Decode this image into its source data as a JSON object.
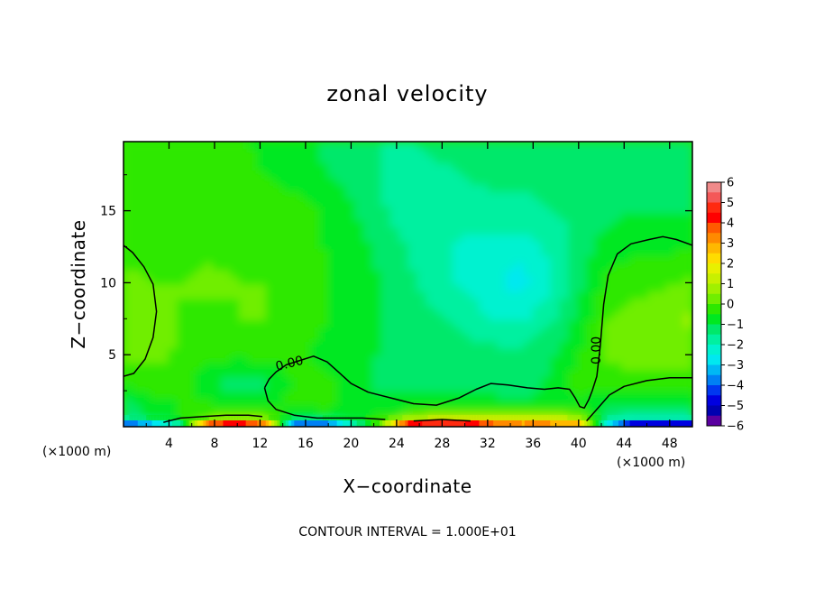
{
  "chart_data": {
    "type": "heatmap",
    "title": "zonal velocity",
    "xlabel": "X−coordinate",
    "ylabel": "Z−coordinate",
    "xlim": [
      0,
      50
    ],
    "ylim": [
      0,
      19.8
    ],
    "x_ticks": [
      {
        "value": 4,
        "label": "4"
      },
      {
        "value": 8,
        "label": "8"
      },
      {
        "value": 12,
        "label": "12"
      },
      {
        "value": 16,
        "label": "16"
      },
      {
        "value": 20,
        "label": "20"
      },
      {
        "value": 24,
        "label": "24"
      },
      {
        "value": 28,
        "label": "28"
      },
      {
        "value": 32,
        "label": "32"
      },
      {
        "value": 36,
        "label": "36"
      },
      {
        "value": 40,
        "label": "40"
      },
      {
        "value": 44,
        "label": "44"
      },
      {
        "value": 48,
        "label": "48"
      }
    ],
    "y_ticks": [
      {
        "value": 5,
        "label": "5"
      },
      {
        "value": 10,
        "label": "10"
      },
      {
        "value": 15,
        "label": "15"
      }
    ],
    "x_units": "(×1000 m)",
    "y_units": "(×1000 m)",
    "contour_label": "0.00",
    "contour_interval_text": "CONTOUR INTERVAL = 1.000E+01",
    "colorbar": {
      "labels": [
        "6",
        "5",
        "4",
        "3",
        "2",
        "1",
        "0",
        "−1",
        "−2",
        "−3",
        "−4",
        "−5",
        "−6"
      ],
      "levels": [
        6,
        5.5,
        5,
        4.5,
        4,
        3.5,
        3,
        2.5,
        2,
        1.5,
        1,
        0.5,
        0,
        -0.5,
        -1,
        -1.5,
        -2,
        -2.5,
        -3,
        -3.5,
        -4,
        -4.5,
        -5,
        -5.5
      ],
      "colors": [
        "#f08a8a",
        "#f45858",
        "#ff2a10",
        "#ff0000",
        "#ff5a00",
        "#ff8a00",
        "#ffb800",
        "#ffdc00",
        "#e8f000",
        "#c8f000",
        "#a0f000",
        "#70ee00",
        "#2ee800",
        "#00e820",
        "#00e86a",
        "#00f0a0",
        "#00f2d0",
        "#00e8f0",
        "#00b8f4",
        "#0080f4",
        "#0038f0",
        "#0000e0",
        "#0000b0",
        "#5a00a0"
      ]
    },
    "field_grid": {
      "x": [
        0,
        2.5,
        5,
        7.5,
        10,
        12.5,
        15,
        17.5,
        20,
        22.5,
        25,
        27.5,
        30,
        32.5,
        35,
        37.5,
        40,
        42.5,
        45,
        47.5,
        50
      ],
      "z": [
        0,
        0.5,
        1.5,
        3,
        5,
        7.5,
        10,
        12.5,
        15,
        17.5,
        19.8
      ],
      "values": [
        [
          -3.5,
          -2.5,
          -1.0,
          4.0,
          5.0,
          3.5,
          -3.0,
          -3.5,
          -1.5,
          0.5,
          4.5,
          5.5,
          5.0,
          4.0,
          3.5,
          3.5,
          3.0,
          -2.0,
          -4.5,
          -4.5,
          -4.0
        ],
        [
          -1.2,
          -0.3,
          0.0,
          0.5,
          1.0,
          0.6,
          -0.6,
          -0.5,
          -0.2,
          0.2,
          1.2,
          1.6,
          1.8,
          1.7,
          1.5,
          2.0,
          1.2,
          -1.0,
          -1.4,
          -1.3,
          -1.2
        ],
        [
          -0.8,
          -0.2,
          0.0,
          0.1,
          0.0,
          0.0,
          0.1,
          0.2,
          -0.2,
          -0.4,
          -0.4,
          -0.3,
          -0.3,
          -0.3,
          -0.4,
          -0.3,
          -0.2,
          -0.4,
          -0.6,
          -0.6,
          -0.6
        ],
        [
          0.1,
          0.2,
          0.2,
          -0.4,
          -0.8,
          -0.6,
          0.1,
          0.3,
          -0.2,
          -0.6,
          -0.6,
          -0.6,
          -0.7,
          -0.7,
          -0.7,
          -0.4,
          0.3,
          0.2,
          0.2,
          0.2,
          0.2
        ],
        [
          0.6,
          0.7,
          0.4,
          0.2,
          0.1,
          0.2,
          0.1,
          -0.2,
          -0.4,
          -0.5,
          -0.6,
          -0.7,
          -0.7,
          -0.8,
          -0.8,
          -0.6,
          0.0,
          0.6,
          0.8,
          0.8,
          0.8
        ],
        [
          1.0,
          0.8,
          0.5,
          0.4,
          0.5,
          0.5,
          0.4,
          0.1,
          -0.3,
          -0.5,
          -0.7,
          -0.9,
          -1.2,
          -1.5,
          -1.6,
          -1.1,
          -0.4,
          0.5,
          0.8,
          0.9,
          1.1
        ],
        [
          0.7,
          0.5,
          0.5,
          0.6,
          0.5,
          0.5,
          0.4,
          0.1,
          -0.2,
          -0.5,
          -0.9,
          -1.3,
          -1.6,
          -1.9,
          -2.2,
          -1.6,
          -0.6,
          0.1,
          0.3,
          0.4,
          0.6
        ],
        [
          0.2,
          0.2,
          0.3,
          0.4,
          0.4,
          0.4,
          0.3,
          0.0,
          -0.3,
          -0.6,
          -1.0,
          -1.3,
          -1.6,
          -1.8,
          -1.8,
          -1.4,
          -0.8,
          -0.2,
          -0.1,
          -0.1,
          0.0
        ],
        [
          0.1,
          0.2,
          0.3,
          0.4,
          0.4,
          0.3,
          0.2,
          0.0,
          -0.4,
          -0.9,
          -1.3,
          -1.3,
          -1.2,
          -1.1,
          -1.1,
          -1.0,
          -0.9,
          -0.7,
          -0.5,
          -0.5,
          -0.5
        ],
        [
          0.2,
          0.3,
          0.3,
          0.2,
          0.1,
          0.0,
          -0.2,
          -0.4,
          -0.7,
          -1.0,
          -1.2,
          -1.1,
          -1.0,
          -0.9,
          -0.9,
          -0.9,
          -0.9,
          -0.8,
          -0.7,
          -0.7,
          -0.7
        ],
        [
          0.4,
          0.4,
          0.3,
          0.2,
          0.1,
          -0.1,
          -0.3,
          -0.6,
          -0.9,
          -1.0,
          -1.0,
          -0.9,
          -0.8,
          -0.8,
          -0.8,
          -0.8,
          -0.8,
          -0.8,
          -0.8,
          -0.7,
          -0.7
        ]
      ]
    },
    "zero_contours": [
      [
        [
          0,
          12.6
        ],
        [
          0.8,
          12.1
        ],
        [
          1.8,
          11.1
        ],
        [
          2.6,
          9.9
        ],
        [
          2.9,
          8.0
        ],
        [
          2.6,
          6.2
        ],
        [
          1.9,
          4.7
        ],
        [
          0.9,
          3.7
        ],
        [
          0,
          3.5
        ]
      ],
      [
        [
          12.4,
          2.7
        ],
        [
          12.8,
          3.3
        ],
        [
          13.4,
          3.8
        ],
        [
          14.3,
          4.3
        ],
        [
          15.5,
          4.6
        ],
        [
          16.7,
          4.9
        ],
        [
          17.9,
          4.5
        ],
        [
          18.9,
          3.8
        ],
        [
          20.0,
          3.0
        ],
        [
          21.5,
          2.4
        ],
        [
          23.5,
          2.0
        ],
        [
          25.5,
          1.6
        ],
        [
          27.5,
          1.5
        ],
        [
          29.5,
          2.0
        ],
        [
          31.0,
          2.6
        ],
        [
          32.3,
          3.0
        ],
        [
          33.8,
          2.9
        ],
        [
          35.5,
          2.7
        ],
        [
          37.0,
          2.6
        ],
        [
          38.2,
          2.7
        ],
        [
          39.2,
          2.6
        ],
        [
          39.7,
          2.0
        ],
        [
          40.1,
          1.4
        ],
        [
          40.5,
          1.3
        ],
        [
          40.9,
          1.9
        ],
        [
          41.2,
          2.5
        ],
        [
          41.6,
          3.5
        ],
        [
          41.9,
          5.6
        ],
        [
          42.2,
          8.5
        ],
        [
          42.6,
          10.5
        ],
        [
          43.4,
          12.0
        ],
        [
          44.6,
          12.7
        ],
        [
          46.2,
          13.0
        ],
        [
          47.4,
          13.2
        ],
        [
          48.6,
          13.0
        ],
        [
          50,
          12.6
        ]
      ],
      [
        [
          12.4,
          2.7
        ],
        [
          12.7,
          1.8
        ],
        [
          13.4,
          1.2
        ],
        [
          15.0,
          0.8
        ],
        [
          17.0,
          0.6
        ],
        [
          19.0,
          0.6
        ],
        [
          21.0,
          0.6
        ],
        [
          23.0,
          0.5
        ]
      ],
      [
        [
          3.5,
          0.3
        ],
        [
          5.0,
          0.6
        ],
        [
          7.0,
          0.7
        ],
        [
          9.0,
          0.8
        ],
        [
          11.0,
          0.8
        ],
        [
          12.2,
          0.7
        ]
      ],
      [
        [
          25.5,
          0.4
        ],
        [
          28.0,
          0.5
        ],
        [
          30.5,
          0.4
        ]
      ],
      [
        [
          40.7,
          0.4
        ],
        [
          41.6,
          1.2
        ],
        [
          42.7,
          2.2
        ],
        [
          44.0,
          2.8
        ],
        [
          46.0,
          3.2
        ],
        [
          48.0,
          3.4
        ],
        [
          50,
          3.4
        ]
      ]
    ]
  }
}
